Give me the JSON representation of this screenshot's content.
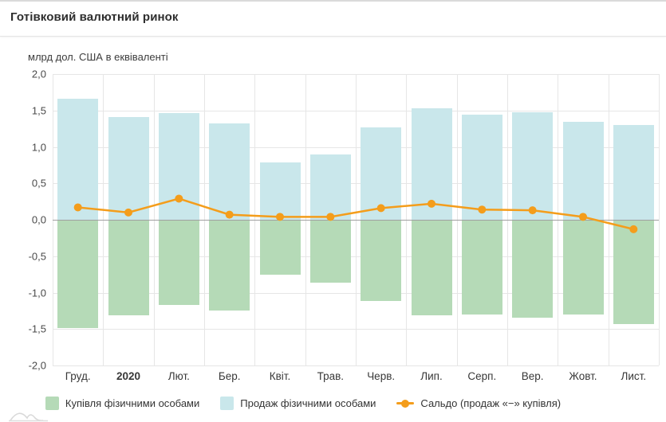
{
  "header": {
    "title": "Готівковий валютний ринок"
  },
  "chart_data": {
    "type": "bar",
    "title": "Готівковий валютний ринок",
    "ylabel": "млрд дол. США в еквіваленті",
    "xlabel": "",
    "categories": [
      "Груд.",
      "2020",
      "Лют.",
      "Бер.",
      "Квіт.",
      "Трав.",
      "Черв.",
      "Лип.",
      "Серп.",
      "Вер.",
      "Жовт.",
      "Лист."
    ],
    "emphasized_category": "2020",
    "series": [
      {
        "name": "Купівля фізичними особами",
        "type": "bar",
        "color": "#b5dab7",
        "values": [
          -1.49,
          -1.31,
          -1.17,
          -1.25,
          -0.75,
          -0.86,
          -1.11,
          -1.31,
          -1.3,
          -1.34,
          -1.3,
          -1.43
        ]
      },
      {
        "name": "Продаж фізичними особами",
        "type": "bar",
        "color": "#c9e7eb",
        "values": [
          1.66,
          1.41,
          1.46,
          1.32,
          0.79,
          0.9,
          1.27,
          1.53,
          1.44,
          1.47,
          1.34,
          1.3
        ]
      },
      {
        "name": "Сальдо (продаж «−» купівля)",
        "type": "line",
        "color": "#f49d1b",
        "values": [
          0.17,
          0.1,
          0.29,
          0.07,
          0.04,
          0.04,
          0.16,
          0.22,
          0.14,
          0.13,
          0.04,
          -0.13
        ]
      }
    ],
    "ylim": [
      -2.0,
      2.0
    ],
    "yticks": [
      2.0,
      1.5,
      1.0,
      0.5,
      0.0,
      -0.5,
      -1.0,
      -1.5,
      -2.0
    ],
    "ytick_labels": [
      "2,0",
      "1,5",
      "1,0",
      "0,5",
      "0,0",
      "-0,5",
      "-1,0",
      "-1,5",
      "-2,0"
    ],
    "grid": true,
    "legend_position": "bottom",
    "colors": {
      "grid": "#e6e6e6",
      "zero_line": "#a0a0a0",
      "axis_text": "#4a4a4a"
    }
  }
}
